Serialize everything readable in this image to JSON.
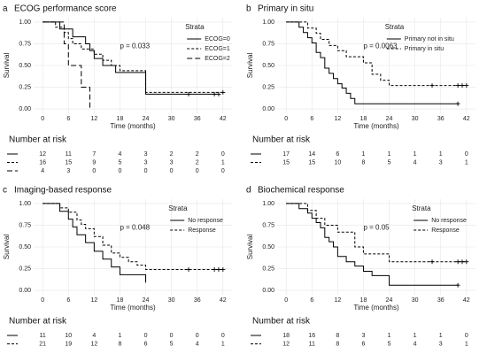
{
  "chart_data": [
    {
      "type": "step",
      "panel_label": "a",
      "title": "ECOG performance score",
      "xlabel": "Time (months)",
      "ylabel": "Survival",
      "annotation": "p = 0.033",
      "legend_title": "Strata",
      "legend": "top-right",
      "grid": true,
      "xlim": [
        -2.1,
        44.1
      ],
      "ylim": [
        -0.05,
        1.05
      ],
      "xticks": [
        0,
        6,
        12,
        18,
        24,
        30,
        36,
        42
      ],
      "yticks": [
        {
          "value": 0,
          "label": "0.00"
        },
        {
          "value": 0.25,
          "label": "0.25"
        },
        {
          "value": 0.5,
          "label": "0.50"
        },
        {
          "value": 0.75,
          "label": "0.75"
        },
        {
          "value": 1,
          "label": "1.00"
        }
      ],
      "series": [
        {
          "name": "ECOG=0",
          "color": "#000000",
          "linestyle": "solid",
          "x": [
            0,
            4,
            7,
            10,
            11,
            12,
            14,
            17,
            24,
            41
          ],
          "values": [
            1,
            0.92,
            0.83,
            0.75,
            0.67,
            0.58,
            0.5,
            0.42,
            0.17,
            0.17
          ],
          "censor_x": [
            34,
            40,
            41
          ]
        },
        {
          "name": "ECOG=1",
          "color": "#000000",
          "linestyle": "dashed",
          "x": [
            0,
            3,
            5,
            6,
            7,
            9,
            12,
            14,
            16,
            18,
            24,
            42
          ],
          "values": [
            1,
            0.94,
            0.88,
            0.81,
            0.75,
            0.69,
            0.63,
            0.56,
            0.5,
            0.44,
            0.19,
            0.19
          ],
          "censor_x": [
            42
          ]
        },
        {
          "name": "ECOG=2",
          "color": "#000000",
          "linestyle": "longdash",
          "x": [
            0,
            5,
            6,
            9,
            11
          ],
          "values": [
            1,
            0.75,
            0.5,
            0.25,
            0
          ],
          "censor_x": []
        }
      ],
      "risk_table": {
        "title": "Number at risk",
        "rows": [
          [
            12,
            11,
            7,
            4,
            3,
            2,
            2,
            0
          ],
          [
            16,
            15,
            9,
            5,
            3,
            3,
            2,
            1
          ],
          [
            4,
            3,
            0,
            0,
            0,
            0,
            0,
            0
          ]
        ]
      }
    },
    {
      "type": "step",
      "panel_label": "b",
      "title": "Primary in situ",
      "xlabel": "Time (months)",
      "ylabel": "Survival",
      "annotation": "p = 0.0063",
      "legend_title": "Strata",
      "legend": "top-right",
      "grid": true,
      "xlim": [
        -2.1,
        44.1
      ],
      "ylim": [
        -0.05,
        1.05
      ],
      "xticks": [
        0,
        6,
        12,
        18,
        24,
        30,
        36,
        42
      ],
      "yticks": [
        {
          "value": 0,
          "label": "0.00"
        },
        {
          "value": 0.25,
          "label": "0.25"
        },
        {
          "value": 0.5,
          "label": "0.50"
        },
        {
          "value": 0.75,
          "label": "0.75"
        },
        {
          "value": 1,
          "label": "1.00"
        }
      ],
      "series": [
        {
          "name": "Primary not in situ",
          "color": "#000000",
          "linestyle": "solid",
          "x": [
            0,
            3,
            4,
            5,
            6,
            7,
            8,
            9,
            10,
            11,
            12,
            13,
            14,
            15,
            16,
            40
          ],
          "values": [
            1,
            0.94,
            0.88,
            0.82,
            0.76,
            0.65,
            0.59,
            0.47,
            0.41,
            0.35,
            0.29,
            0.24,
            0.18,
            0.12,
            0.06,
            0.06
          ],
          "censor_x": [
            40
          ]
        },
        {
          "name": "Primary in situ",
          "color": "#000000",
          "linestyle": "dashed",
          "x": [
            0,
            5,
            7,
            8,
            10,
            12,
            14,
            18,
            20,
            22,
            24,
            42
          ],
          "values": [
            1,
            0.93,
            0.87,
            0.8,
            0.73,
            0.67,
            0.6,
            0.53,
            0.4,
            0.33,
            0.27,
            0.27
          ],
          "censor_x": [
            34,
            40,
            41,
            42
          ]
        }
      ],
      "risk_table": {
        "title": "Number at risk",
        "rows": [
          [
            17,
            14,
            6,
            1,
            1,
            1,
            1,
            0
          ],
          [
            15,
            15,
            10,
            8,
            5,
            4,
            3,
            1
          ]
        ]
      }
    },
    {
      "type": "step",
      "panel_label": "c",
      "title": "Imaging-based response",
      "xlabel": "Time (months)",
      "ylabel": "Survival",
      "annotation": "p = 0.048",
      "legend_title": "Strata",
      "legend": "top-right",
      "grid": true,
      "xlim": [
        -2.1,
        44.1
      ],
      "ylim": [
        -0.05,
        1.05
      ],
      "xticks": [
        0,
        6,
        12,
        18,
        24,
        30,
        36,
        42
      ],
      "yticks": [
        {
          "value": 0,
          "label": "0.00"
        },
        {
          "value": 0.25,
          "label": "0.25"
        },
        {
          "value": 0.5,
          "label": "0.50"
        },
        {
          "value": 0.75,
          "label": "0.75"
        },
        {
          "value": 1,
          "label": "1.00"
        }
      ],
      "series": [
        {
          "name": "No response",
          "color": "#000000",
          "linestyle": "solid",
          "x": [
            0,
            4,
            6,
            7,
            8,
            10,
            12,
            14,
            16,
            18,
            24
          ],
          "values": [
            1,
            0.91,
            0.82,
            0.73,
            0.64,
            0.55,
            0.45,
            0.36,
            0.27,
            0.18,
            0.09
          ],
          "censor_x": []
        },
        {
          "name": "Response",
          "color": "#000000",
          "linestyle": "dashed",
          "x": [
            0,
            4,
            6,
            8,
            9,
            10,
            12,
            14,
            16,
            18,
            20,
            22,
            24,
            42
          ],
          "values": [
            1,
            0.95,
            0.9,
            0.81,
            0.76,
            0.71,
            0.62,
            0.52,
            0.43,
            0.38,
            0.33,
            0.29,
            0.24,
            0.24
          ],
          "censor_x": [
            34,
            40,
            41,
            42
          ]
        }
      ],
      "risk_table": {
        "title": "Number at risk",
        "rows": [
          [
            11,
            10,
            4,
            1,
            0,
            0,
            0,
            0
          ],
          [
            21,
            19,
            12,
            8,
            6,
            5,
            4,
            1
          ]
        ]
      }
    },
    {
      "type": "step",
      "panel_label": "d",
      "title": "Biochemical response",
      "xlabel": "Time (months)",
      "ylabel": "Survival",
      "annotation": "p = 0.05",
      "legend_title": "Strata",
      "legend": "top-right",
      "grid": true,
      "xlim": [
        -2.1,
        44.1
      ],
      "ylim": [
        -0.05,
        1.05
      ],
      "xticks": [
        0,
        6,
        12,
        18,
        24,
        30,
        36,
        42
      ],
      "yticks": [
        {
          "value": 0,
          "label": "0.00"
        },
        {
          "value": 0.25,
          "label": "0.25"
        },
        {
          "value": 0.5,
          "label": "0.50"
        },
        {
          "value": 0.75,
          "label": "0.75"
        },
        {
          "value": 1,
          "label": "1.00"
        }
      ],
      "series": [
        {
          "name": "No response",
          "color": "#000000",
          "linestyle": "solid",
          "x": [
            0,
            3,
            5,
            6,
            7,
            8,
            9,
            10,
            11,
            12,
            14,
            16,
            18,
            20,
            24,
            40
          ],
          "values": [
            1,
            0.94,
            0.89,
            0.83,
            0.78,
            0.72,
            0.61,
            0.56,
            0.5,
            0.39,
            0.33,
            0.28,
            0.22,
            0.17,
            0.06,
            0.06
          ],
          "censor_x": [
            40
          ]
        },
        {
          "name": "Response",
          "color": "#000000",
          "linestyle": "dashed",
          "x": [
            0,
            5,
            7,
            9,
            12,
            16,
            18,
            24,
            42
          ],
          "values": [
            1,
            0.92,
            0.83,
            0.75,
            0.67,
            0.5,
            0.42,
            0.33,
            0.33
          ],
          "censor_x": [
            34,
            40,
            41,
            42
          ]
        }
      ],
      "risk_table": {
        "title": "Number at risk",
        "rows": [
          [
            18,
            16,
            8,
            3,
            1,
            1,
            1,
            0
          ],
          [
            12,
            11,
            8,
            6,
            5,
            4,
            3,
            1
          ]
        ]
      }
    }
  ]
}
